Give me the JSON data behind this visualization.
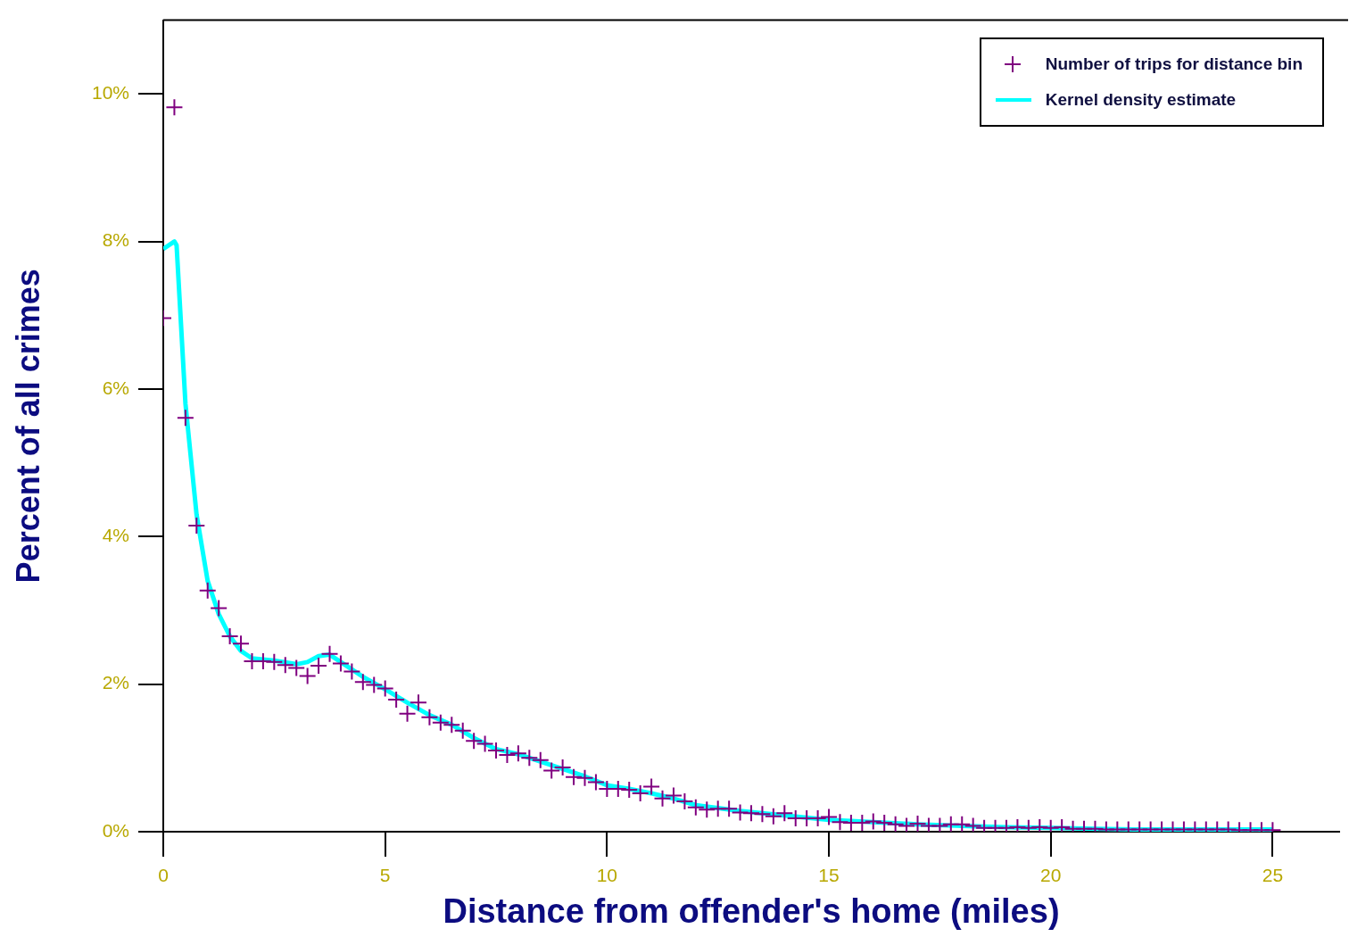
{
  "chart_data": {
    "type": "scatter",
    "xlabel": "Distance from offender's home (miles)",
    "ylabel": "Percent of all crimes",
    "xlim": [
      0,
      26.5
    ],
    "ylim": [
      0,
      11
    ],
    "xticks": [
      0,
      5,
      10,
      15,
      20,
      25
    ],
    "yticks": [
      {
        "value": 0,
        "label": "0%"
      },
      {
        "value": 2,
        "label": "2%"
      },
      {
        "value": 4,
        "label": "4%"
      },
      {
        "value": 6,
        "label": "6%"
      },
      {
        "value": 8,
        "label": "8%"
      },
      {
        "value": 10,
        "label": "10%"
      }
    ],
    "grid": false,
    "legend": "top right",
    "series": [
      {
        "name": "Number of trips for distance bin",
        "marker": "cross",
        "color": "#800080",
        "x": [
          0,
          0.25,
          0.5,
          0.75,
          1,
          1.25,
          1.5,
          1.75,
          2,
          2.25,
          2.5,
          2.75,
          3,
          3.25,
          3.5,
          3.75,
          4,
          4.25,
          4.5,
          4.75,
          5,
          5.25,
          5.5,
          5.75,
          6,
          6.25,
          6.5,
          6.75,
          7,
          7.25,
          7.5,
          7.75,
          8,
          8.25,
          8.5,
          8.75,
          9,
          9.25,
          9.5,
          9.75,
          10,
          10.25,
          10.5,
          10.75,
          11,
          11.25,
          11.5,
          11.75,
          12,
          12.25,
          12.5,
          12.75,
          13,
          13.25,
          13.5,
          13.75,
          14,
          14.25,
          14.5,
          14.75,
          15,
          15.25,
          15.5,
          15.75,
          16,
          16.25,
          16.5,
          16.75,
          17,
          17.25,
          17.5,
          17.75,
          18,
          18.25,
          18.5,
          18.75,
          19,
          19.25,
          19.5,
          19.75,
          20,
          20.25,
          20.5,
          20.75,
          21,
          21.25,
          21.5,
          21.75,
          22,
          22.25,
          22.5,
          22.75,
          23,
          23.25,
          23.5,
          23.75,
          24,
          24.25,
          24.5,
          24.75,
          25
        ],
        "values": [
          6.96,
          9.82,
          5.61,
          4.15,
          3.27,
          3.03,
          2.65,
          2.55,
          2.31,
          2.31,
          2.3,
          2.26,
          2.22,
          2.11,
          2.25,
          2.41,
          2.28,
          2.17,
          2.03,
          1.99,
          1.94,
          1.79,
          1.6,
          1.75,
          1.55,
          1.48,
          1.45,
          1.37,
          1.23,
          1.19,
          1.1,
          1.04,
          1.06,
          1,
          0.97,
          0.83,
          0.87,
          0.74,
          0.73,
          0.67,
          0.58,
          0.58,
          0.57,
          0.52,
          0.61,
          0.45,
          0.49,
          0.41,
          0.33,
          0.3,
          0.31,
          0.31,
          0.26,
          0.25,
          0.24,
          0.21,
          0.25,
          0.18,
          0.18,
          0.18,
          0.2,
          0.13,
          0.12,
          0.12,
          0.14,
          0.12,
          0.1,
          0.08,
          0.11,
          0.08,
          0.08,
          0.1,
          0.1,
          0.08,
          0.05,
          0.05,
          0.05,
          0.06,
          0.05,
          0.06,
          0.05,
          0.06,
          0.04,
          0.04,
          0.04,
          0.03,
          0.03,
          0.03,
          0.03,
          0.03,
          0.03,
          0.03,
          0.03,
          0.03,
          0.03,
          0.03,
          0.03,
          0.02,
          0.02,
          0.02,
          0.02
        ]
      },
      {
        "name": "Kernel density estimate",
        "type": "line",
        "marker": "none",
        "line_style": "solid",
        "color": "#00ffff",
        "x": [
          0,
          0.25,
          0.3,
          0.5,
          0.75,
          1,
          1.25,
          1.5,
          1.75,
          2,
          2.5,
          3,
          3.25,
          3.5,
          3.75,
          4,
          4.5,
          5,
          5.5,
          6,
          6.5,
          7,
          7.5,
          8,
          8.5,
          9,
          9.5,
          10,
          10.5,
          11,
          11.5,
          12,
          12.5,
          13,
          13.5,
          14,
          14.5,
          15,
          16,
          17,
          18,
          19,
          20,
          21,
          22,
          25
        ],
        "values": [
          7.9,
          8,
          7.95,
          5.8,
          4.3,
          3.4,
          2.95,
          2.65,
          2.45,
          2.35,
          2.32,
          2.27,
          2.3,
          2.38,
          2.4,
          2.3,
          2.1,
          1.93,
          1.75,
          1.58,
          1.45,
          1.27,
          1.12,
          1.05,
          0.95,
          0.85,
          0.75,
          0.63,
          0.58,
          0.52,
          0.45,
          0.36,
          0.32,
          0.28,
          0.25,
          0.22,
          0.19,
          0.16,
          0.13,
          0.1,
          0.08,
          0.06,
          0.05,
          0.04,
          0.03,
          0.03
        ]
      }
    ]
  }
}
